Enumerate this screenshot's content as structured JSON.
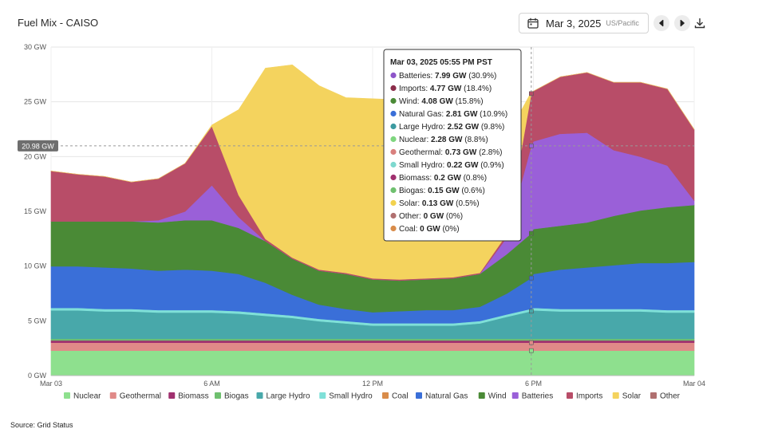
{
  "header": {
    "title": "Fuel Mix - CAISO",
    "date": "Mar 3, 2025",
    "timezone": "US/Pacific"
  },
  "source": "Source: Grid Status",
  "crosshair_label": "20.98 GW",
  "tooltip": {
    "title": "Mar 03, 2025 05:55 PM PST",
    "rows": [
      {
        "name": "Batteries:",
        "value": "7.99 GW",
        "pct": "(30.9%)",
        "color": "#8e55c9"
      },
      {
        "name": "Imports:",
        "value": "4.77 GW",
        "pct": "(18.4%)",
        "color": "#8b2d4a"
      },
      {
        "name": "Wind:",
        "value": "4.08 GW",
        "pct": "(15.8%)",
        "color": "#4a8a36"
      },
      {
        "name": "Natural Gas:",
        "value": "2.81 GW",
        "pct": "(10.9%)",
        "color": "#3a6fd8"
      },
      {
        "name": "Large Hydro:",
        "value": "2.52 GW",
        "pct": "(9.8%)",
        "color": "#3c9aa0"
      },
      {
        "name": "Nuclear:",
        "value": "2.28 GW",
        "pct": "(8.8%)",
        "color": "#7fd67f"
      },
      {
        "name": "Geothermal:",
        "value": "0.73 GW",
        "pct": "(2.8%)",
        "color": "#d9807e"
      },
      {
        "name": "Small Hydro:",
        "value": "0.22 GW",
        "pct": "(0.9%)",
        "color": "#7ed9cf"
      },
      {
        "name": "Biomass:",
        "value": "0.2 GW",
        "pct": "(0.8%)",
        "color": "#a0306f"
      },
      {
        "name": "Biogas:",
        "value": "0.15 GW",
        "pct": "(0.6%)",
        "color": "#6fc06f"
      },
      {
        "name": "Solar:",
        "value": "0.13 GW",
        "pct": "(0.5%)",
        "color": "#f2d24e"
      },
      {
        "name": "Other:",
        "value": "0 GW",
        "pct": "(0%)",
        "color": "#b07070"
      },
      {
        "name": "Coal:",
        "value": "0 GW",
        "pct": "(0%)",
        "color": "#d98c4a"
      }
    ]
  },
  "chart_data": {
    "type": "area",
    "stacked": true,
    "x": [
      0,
      1,
      2,
      3,
      4,
      5,
      6,
      7,
      8,
      9,
      10,
      11,
      12,
      13,
      14,
      15,
      16,
      17,
      17.92,
      18,
      19,
      20,
      21,
      22,
      23,
      24
    ],
    "xticks": [
      {
        "x": 0,
        "label": "Mar 03"
      },
      {
        "x": 6,
        "label": "6 AM"
      },
      {
        "x": 12,
        "label": "12 PM"
      },
      {
        "x": 18,
        "label": "6 PM"
      },
      {
        "x": 24,
        "label": "Mar 04"
      }
    ],
    "ylim": [
      0,
      30
    ],
    "yticks": [
      "0 GW",
      "5 GW",
      "10 GW",
      "15 GW",
      "20 GW",
      "25 GW",
      "30 GW"
    ],
    "grid": true,
    "legend_position": "bottom",
    "series": [
      {
        "name": "Nuclear",
        "color": "#8ee08e",
        "values": [
          2.28,
          2.28,
          2.28,
          2.28,
          2.28,
          2.28,
          2.28,
          2.28,
          2.28,
          2.28,
          2.28,
          2.28,
          2.28,
          2.28,
          2.28,
          2.28,
          2.28,
          2.28,
          2.28,
          2.28,
          2.28,
          2.28,
          2.28,
          2.28,
          2.28,
          2.28
        ]
      },
      {
        "name": "Geothermal",
        "color": "#e08a88",
        "values": [
          0.73,
          0.73,
          0.73,
          0.73,
          0.73,
          0.73,
          0.73,
          0.73,
          0.73,
          0.73,
          0.73,
          0.73,
          0.73,
          0.73,
          0.73,
          0.73,
          0.73,
          0.73,
          0.73,
          0.73,
          0.73,
          0.73,
          0.73,
          0.73,
          0.73,
          0.73
        ]
      },
      {
        "name": "Biomass",
        "color": "#a0306f",
        "values": [
          0.2,
          0.2,
          0.2,
          0.2,
          0.2,
          0.2,
          0.2,
          0.2,
          0.2,
          0.2,
          0.2,
          0.2,
          0.2,
          0.2,
          0.2,
          0.2,
          0.2,
          0.2,
          0.2,
          0.2,
          0.2,
          0.2,
          0.2,
          0.2,
          0.2,
          0.2
        ]
      },
      {
        "name": "Biogas",
        "color": "#6fc06f",
        "values": [
          0.15,
          0.15,
          0.15,
          0.15,
          0.15,
          0.15,
          0.15,
          0.15,
          0.15,
          0.15,
          0.15,
          0.15,
          0.15,
          0.15,
          0.15,
          0.15,
          0.15,
          0.15,
          0.15,
          0.15,
          0.15,
          0.15,
          0.15,
          0.15,
          0.15,
          0.15
        ]
      },
      {
        "name": "Large Hydro",
        "color": "#48a8aa",
        "values": [
          2.6,
          2.6,
          2.5,
          2.5,
          2.4,
          2.4,
          2.4,
          2.3,
          2.1,
          1.9,
          1.6,
          1.4,
          1.2,
          1.2,
          1.2,
          1.2,
          1.4,
          2.0,
          2.52,
          2.6,
          2.5,
          2.5,
          2.5,
          2.5,
          2.4,
          2.4
        ]
      },
      {
        "name": "Small Hydro",
        "color": "#7fe0d8",
        "values": [
          0.22,
          0.22,
          0.22,
          0.22,
          0.22,
          0.22,
          0.22,
          0.22,
          0.22,
          0.22,
          0.22,
          0.22,
          0.22,
          0.22,
          0.22,
          0.22,
          0.22,
          0.22,
          0.22,
          0.22,
          0.22,
          0.22,
          0.22,
          0.22,
          0.22,
          0.22
        ]
      },
      {
        "name": "Coal",
        "color": "#d98c4a",
        "values": [
          0,
          0,
          0,
          0,
          0,
          0,
          0,
          0,
          0,
          0,
          0,
          0,
          0,
          0,
          0,
          0,
          0,
          0,
          0,
          0,
          0,
          0,
          0,
          0,
          0,
          0
        ]
      },
      {
        "name": "Natural Gas",
        "color": "#3a6fd8",
        "values": [
          3.8,
          3.8,
          3.8,
          3.7,
          3.6,
          3.7,
          3.6,
          3.4,
          2.8,
          1.9,
          1.3,
          1.1,
          1.0,
          1.1,
          1.2,
          1.2,
          1.3,
          1.9,
          2.81,
          3.1,
          3.6,
          3.8,
          4.0,
          4.2,
          4.3,
          4.4
        ]
      },
      {
        "name": "Wind",
        "color": "#4a8a36",
        "values": [
          4.1,
          4.1,
          4.2,
          4.3,
          4.4,
          4.5,
          4.6,
          4.2,
          3.8,
          3.3,
          3.1,
          3.2,
          3.0,
          2.8,
          2.8,
          2.9,
          3.0,
          3.6,
          4.08,
          4.1,
          4.0,
          4.1,
          4.5,
          4.8,
          5.1,
          5.2
        ]
      },
      {
        "name": "Batteries",
        "color": "#9a60d8",
        "values": [
          0,
          0,
          0,
          0,
          0.2,
          0.8,
          3.2,
          1.0,
          0,
          0,
          0,
          0,
          0,
          0,
          0,
          0,
          0,
          1.5,
          7.99,
          8.0,
          8.4,
          8.2,
          6.0,
          4.9,
          3.8,
          0.4
        ]
      },
      {
        "name": "Imports",
        "color": "#b84d68",
        "values": [
          4.6,
          4.3,
          4.1,
          3.6,
          3.8,
          4.4,
          5.4,
          2.0,
          0.2,
          0.1,
          0.1,
          0.1,
          0.1,
          0.1,
          0.1,
          0.1,
          0.1,
          0.3,
          4.77,
          4.6,
          5.2,
          5.5,
          6.2,
          6.8,
          7.0,
          6.5
        ]
      },
      {
        "name": "Solar",
        "color": "#f4d35e",
        "values": [
          0,
          0,
          0,
          0,
          0,
          0,
          0.1,
          7.8,
          15.6,
          17.6,
          16.8,
          16.0,
          16.4,
          16.4,
          16.4,
          16.5,
          15.6,
          8.9,
          0.13,
          0,
          0,
          0,
          0,
          0,
          0,
          0
        ]
      },
      {
        "name": "Other",
        "color": "#b07070",
        "values": [
          0,
          0,
          0,
          0,
          0,
          0,
          0,
          0,
          0,
          0,
          0,
          0,
          0,
          0,
          0,
          0,
          0,
          0,
          0,
          0,
          0,
          0,
          0,
          0,
          0,
          0
        ]
      }
    ],
    "crosshair_x": 17.92,
    "crosshair_y": 20.98
  }
}
